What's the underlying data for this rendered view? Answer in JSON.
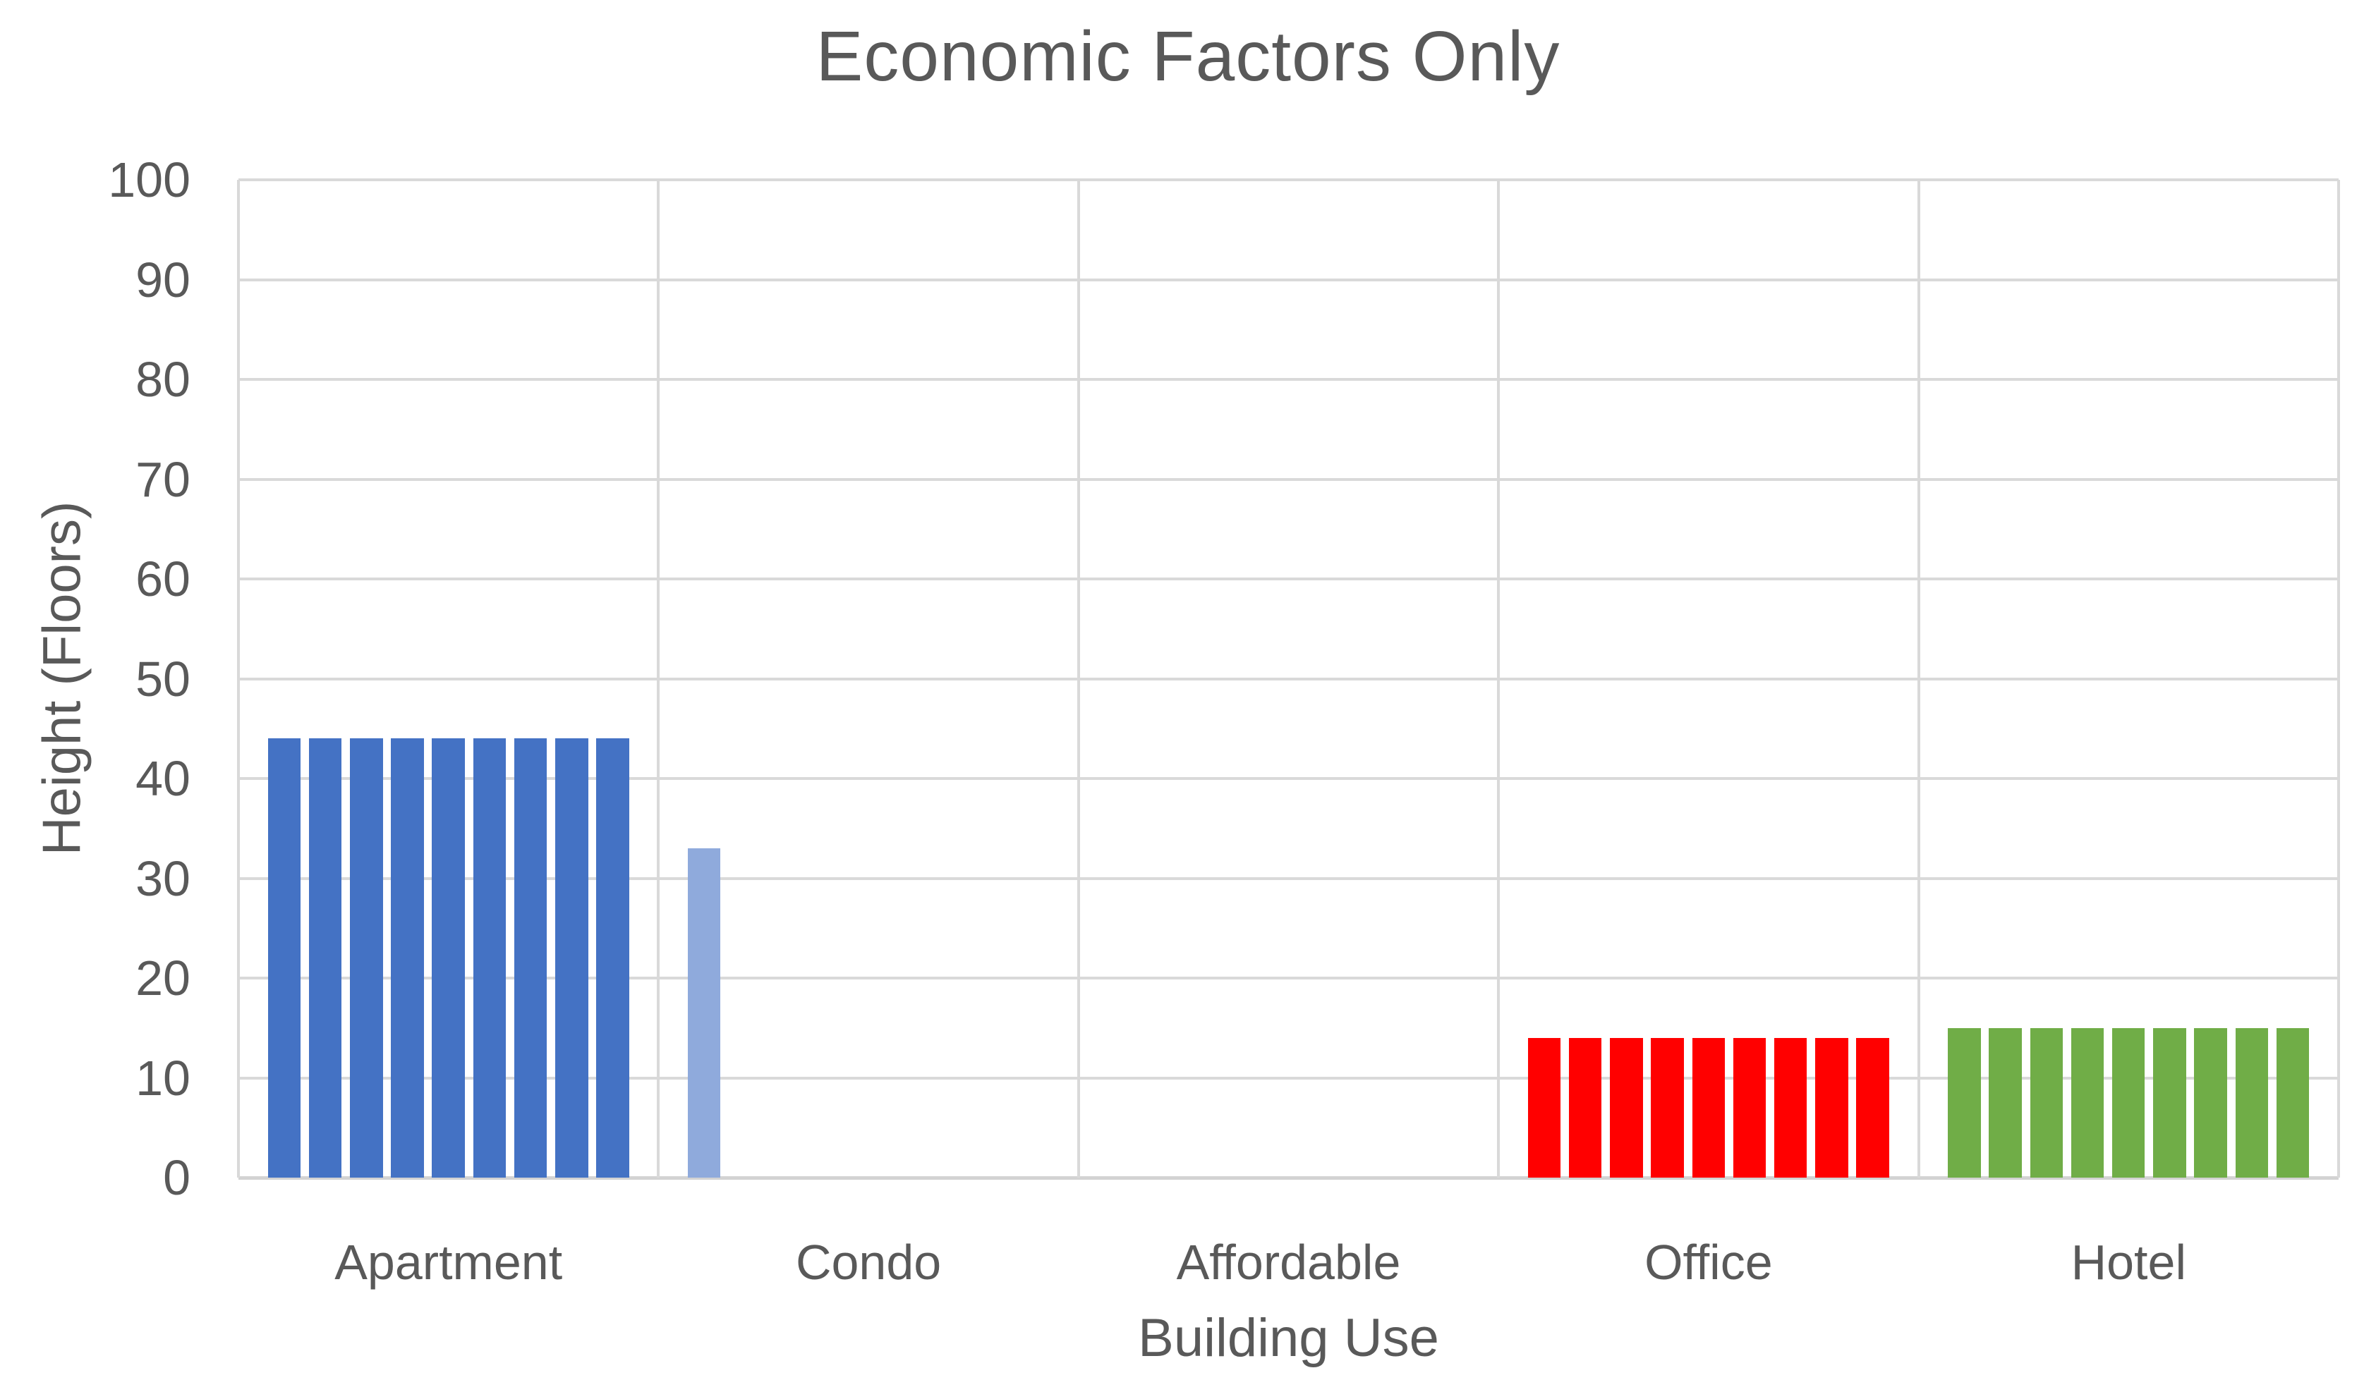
{
  "chart_data": {
    "type": "bar",
    "title": "Economic Factors Only",
    "xlabel": "Building Use",
    "ylabel": "Height (Floors)",
    "categories": [
      "Apartment",
      "Condo",
      "Affordable",
      "Office",
      "Hotel"
    ],
    "slots_per_category": 9,
    "groups": [
      {
        "category": "Apartment",
        "color": "#4472C4",
        "bar_values": [
          44,
          44,
          44,
          44,
          44,
          44,
          44,
          44,
          44
        ]
      },
      {
        "category": "Condo",
        "color": "#8FAADC",
        "bar_values": [
          33
        ]
      },
      {
        "category": "Affordable",
        "color": "#4472C4",
        "bar_values": []
      },
      {
        "category": "Office",
        "color": "#FF0000",
        "bar_values": [
          14,
          14,
          14,
          14,
          14,
          14,
          14,
          14,
          14
        ]
      },
      {
        "category": "Hotel",
        "color": "#70AD47",
        "bar_values": [
          15,
          15,
          15,
          15,
          15,
          15,
          15,
          15,
          15
        ]
      }
    ],
    "ylim": [
      0,
      100
    ],
    "yticks": [
      0,
      10,
      20,
      30,
      40,
      50,
      60,
      70,
      80,
      90,
      100
    ],
    "grid": "horizontal gridlines every 10; vertical lines at category boundaries",
    "legend": "none",
    "colors": {
      "background": "#FFFFFF",
      "gridline": "#D9D9D9",
      "axis_line": "#D3D3D3",
      "text": "#595959",
      "series_apartment": "#4472C4",
      "series_condo": "#8FAADC",
      "series_office": "#FF0000",
      "series_hotel": "#70AD47"
    }
  }
}
